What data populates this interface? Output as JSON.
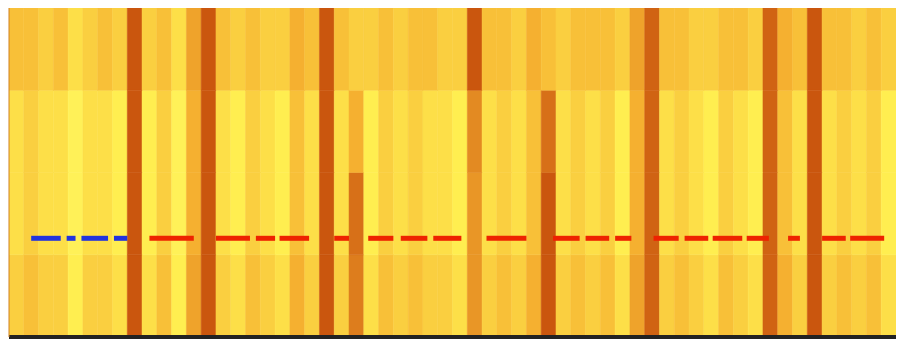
{
  "chart_data": {
    "type": "heatmap",
    "tick_labels": false,
    "xlim": [
      0,
      60
    ],
    "ylim": [
      0,
      4
    ],
    "zlim": [
      0,
      1
    ],
    "cells": [
      [
        0.4,
        0.45,
        0.4,
        0.4,
        0.3,
        0.4,
        0.4,
        0.35,
        0.85,
        0.35,
        0.45,
        0.3,
        0.55,
        0.85,
        0.4,
        0.35,
        0.45,
        0.4,
        0.35,
        0.5,
        0.4,
        0.85,
        0.4,
        0.7,
        0.35,
        0.45,
        0.4,
        0.45,
        0.4,
        0.4,
        0.35,
        0.6,
        0.4,
        0.45,
        0.4,
        0.5,
        0.85,
        0.4,
        0.45,
        0.4,
        0.45,
        0.35,
        0.55,
        0.8,
        0.4,
        0.45,
        0.4,
        0.35,
        0.45,
        0.4,
        0.35,
        0.8,
        0.5,
        0.4,
        0.85,
        0.4,
        0.45,
        0.4,
        0.45,
        0.35
      ],
      [
        0.35,
        0.4,
        0.35,
        0.35,
        0.25,
        0.35,
        0.35,
        0.3,
        0.85,
        0.3,
        0.4,
        0.25,
        0.5,
        0.85,
        0.35,
        0.3,
        0.4,
        0.35,
        0.3,
        0.45,
        0.35,
        0.85,
        0.35,
        0.75,
        0.3,
        0.4,
        0.35,
        0.4,
        0.35,
        0.35,
        0.3,
        0.6,
        0.35,
        0.4,
        0.35,
        0.45,
        0.85,
        0.35,
        0.4,
        0.35,
        0.4,
        0.3,
        0.5,
        0.8,
        0.35,
        0.4,
        0.35,
        0.3,
        0.4,
        0.35,
        0.3,
        0.8,
        0.45,
        0.35,
        0.85,
        0.35,
        0.4,
        0.35,
        0.4,
        0.3
      ],
      [
        0.35,
        0.4,
        0.35,
        0.35,
        0.25,
        0.35,
        0.35,
        0.3,
        0.85,
        0.3,
        0.4,
        0.25,
        0.5,
        0.85,
        0.35,
        0.3,
        0.4,
        0.35,
        0.3,
        0.45,
        0.35,
        0.85,
        0.35,
        0.5,
        0.3,
        0.4,
        0.35,
        0.4,
        0.35,
        0.35,
        0.3,
        0.65,
        0.35,
        0.4,
        0.35,
        0.45,
        0.75,
        0.35,
        0.4,
        0.35,
        0.4,
        0.3,
        0.5,
        0.8,
        0.35,
        0.4,
        0.35,
        0.3,
        0.4,
        0.35,
        0.3,
        0.8,
        0.45,
        0.35,
        0.85,
        0.35,
        0.4,
        0.35,
        0.4,
        0.3
      ],
      [
        0.45,
        0.45,
        0.4,
        0.45,
        0.35,
        0.4,
        0.45,
        0.4,
        0.85,
        0.4,
        0.45,
        0.35,
        0.55,
        0.85,
        0.45,
        0.4,
        0.45,
        0.4,
        0.4,
        0.5,
        0.45,
        0.85,
        0.45,
        0.4,
        0.4,
        0.45,
        0.4,
        0.45,
        0.45,
        0.4,
        0.4,
        0.85,
        0.45,
        0.45,
        0.4,
        0.5,
        0.45,
        0.4,
        0.45,
        0.45,
        0.45,
        0.4,
        0.55,
        0.8,
        0.45,
        0.45,
        0.4,
        0.4,
        0.45,
        0.45,
        0.4,
        0.8,
        0.5,
        0.45,
        0.85,
        0.45,
        0.45,
        0.4,
        0.45,
        0.4
      ]
    ],
    "line_y": 1.2,
    "segments": [
      {
        "x": [
          1.5,
          3.5
        ],
        "color": "#2233dd"
      },
      {
        "x": [
          3.9,
          4.5
        ],
        "color": "#2233dd"
      },
      {
        "x": [
          4.9,
          6.7
        ],
        "color": "#2233dd"
      },
      {
        "x": [
          7.1,
          8.0
        ],
        "color": "#2233dd"
      },
      {
        "x": [
          9.5,
          12.5
        ],
        "color": "#ee2200"
      },
      {
        "x": [
          14.0,
          16.3
        ],
        "color": "#ee2200"
      },
      {
        "x": [
          16.7,
          18.0
        ],
        "color": "#ee2200"
      },
      {
        "x": [
          18.3,
          20.3
        ],
        "color": "#ee2200"
      },
      {
        "x": [
          22.0,
          23.0
        ],
        "color": "#ee2200"
      },
      {
        "x": [
          24.3,
          26.0
        ],
        "color": "#ee2200"
      },
      {
        "x": [
          26.5,
          28.3
        ],
        "color": "#ee2200"
      },
      {
        "x": [
          28.7,
          30.6
        ],
        "color": "#ee2200"
      },
      {
        "x": [
          32.3,
          35.0
        ],
        "color": "#ee2200"
      },
      {
        "x": [
          36.8,
          38.6
        ],
        "color": "#ee2200"
      },
      {
        "x": [
          39.0,
          40.6
        ],
        "color": "#ee2200"
      },
      {
        "x": [
          41.0,
          42.1
        ],
        "color": "#ee2200"
      },
      {
        "x": [
          43.6,
          45.3
        ],
        "color": "#ee2200"
      },
      {
        "x": [
          45.7,
          47.3
        ],
        "color": "#ee2200"
      },
      {
        "x": [
          47.6,
          49.6
        ],
        "color": "#ee2200"
      },
      {
        "x": [
          49.9,
          51.4
        ],
        "color": "#ee2200"
      },
      {
        "x": [
          52.7,
          53.5
        ],
        "color": "#ee2200"
      },
      {
        "x": [
          55.0,
          56.6
        ],
        "color": "#ee2200"
      },
      {
        "x": [
          56.9,
          59.2
        ],
        "color": "#ee2200"
      }
    ]
  }
}
